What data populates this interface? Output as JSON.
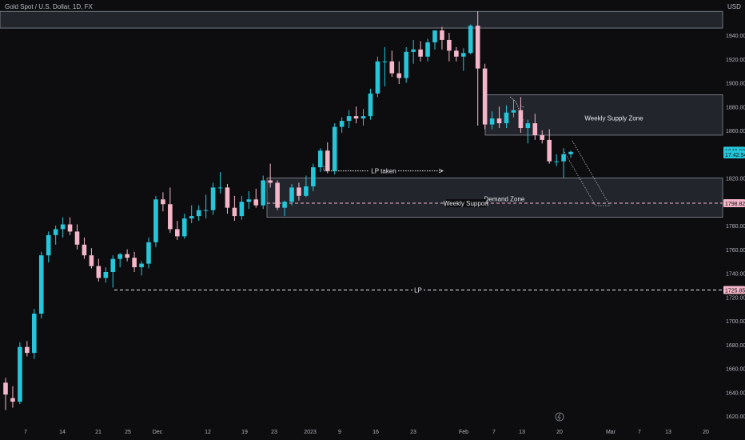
{
  "header": {
    "symbol_title": "Gold Spot / U.S. Dollar, 1D, FX",
    "currency": "USD"
  },
  "colors": {
    "background": "#0d0d0f",
    "up_candle": "#26c6da",
    "down_candle": "#f4b6c8",
    "zone_fill": "#363a45",
    "zone_border": "#8a8f99",
    "axis_text": "#b2b5be",
    "label_bg_pink": "#f4b6c8",
    "label_bg_cyan": "#26c6da"
  },
  "chart_data": {
    "type": "candlestick",
    "x_tick_labels": [
      "7",
      "14",
      "21",
      "25",
      "Dec",
      "12",
      "19",
      "23",
      "2023",
      "9",
      "16",
      "23",
      "Feb",
      "7",
      "13",
      "20",
      "Mar",
      "7",
      "13",
      "20"
    ],
    "y_ticks": [
      "1620.00",
      "1640.00",
      "1660.00",
      "1680.00",
      "1700.00",
      "1720.00",
      "1740.00",
      "1760.00",
      "1780.00",
      "1800.00",
      "1820.00",
      "1840.00",
      "1860.00",
      "1880.00",
      "1900.00",
      "1920.00",
      "1940.00"
    ],
    "ylim": [
      1614,
      1958
    ],
    "price_labels": [
      {
        "text": "1842.98",
        "value": 1842.98,
        "style": "cyan"
      },
      {
        "text": "17:42:54",
        "value": 1839.8,
        "style": "cyan"
      },
      {
        "text": "1798.82",
        "value": 1798.82,
        "style": "pink"
      },
      {
        "text": "1725.85",
        "value": 1725.85,
        "style": "pink"
      }
    ],
    "candles": [
      {
        "o": 1648,
        "h": 1652,
        "l": 1625,
        "c": 1638
      },
      {
        "o": 1635,
        "h": 1645,
        "l": 1627,
        "c": 1632
      },
      {
        "o": 1632,
        "h": 1682,
        "l": 1630,
        "c": 1678
      },
      {
        "o": 1678,
        "h": 1683,
        "l": 1670,
        "c": 1673
      },
      {
        "o": 1673,
        "h": 1710,
        "l": 1668,
        "c": 1706
      },
      {
        "o": 1706,
        "h": 1758,
        "l": 1702,
        "c": 1755
      },
      {
        "o": 1755,
        "h": 1775,
        "l": 1749,
        "c": 1772
      },
      {
        "o": 1772,
        "h": 1780,
        "l": 1764,
        "c": 1777
      },
      {
        "o": 1777,
        "h": 1787,
        "l": 1770,
        "c": 1781
      },
      {
        "o": 1781,
        "h": 1787,
        "l": 1772,
        "c": 1775
      },
      {
        "o": 1775,
        "h": 1781,
        "l": 1760,
        "c": 1764
      },
      {
        "o": 1764,
        "h": 1770,
        "l": 1752,
        "c": 1755
      },
      {
        "o": 1755,
        "h": 1761,
        "l": 1744,
        "c": 1746
      },
      {
        "o": 1746,
        "h": 1752,
        "l": 1733,
        "c": 1736
      },
      {
        "o": 1736,
        "h": 1745,
        "l": 1732,
        "c": 1741
      },
      {
        "o": 1741,
        "h": 1755,
        "l": 1728,
        "c": 1752
      },
      {
        "o": 1752,
        "h": 1757,
        "l": 1745,
        "c": 1756
      },
      {
        "o": 1756,
        "h": 1760,
        "l": 1750,
        "c": 1753
      },
      {
        "o": 1753,
        "h": 1758,
        "l": 1741,
        "c": 1745
      },
      {
        "o": 1745,
        "h": 1750,
        "l": 1738,
        "c": 1748
      },
      {
        "o": 1748,
        "h": 1770,
        "l": 1744,
        "c": 1766
      },
      {
        "o": 1766,
        "h": 1805,
        "l": 1762,
        "c": 1802
      },
      {
        "o": 1802,
        "h": 1808,
        "l": 1792,
        "c": 1798
      },
      {
        "o": 1798,
        "h": 1812,
        "l": 1774,
        "c": 1777
      },
      {
        "o": 1777,
        "h": 1784,
        "l": 1768,
        "c": 1771
      },
      {
        "o": 1771,
        "h": 1790,
        "l": 1769,
        "c": 1786
      },
      {
        "o": 1786,
        "h": 1797,
        "l": 1782,
        "c": 1788
      },
      {
        "o": 1788,
        "h": 1797,
        "l": 1784,
        "c": 1793
      },
      {
        "o": 1793,
        "h": 1806,
        "l": 1786,
        "c": 1793
      },
      {
        "o": 1793,
        "h": 1816,
        "l": 1789,
        "c": 1812
      },
      {
        "o": 1812,
        "h": 1825,
        "l": 1807,
        "c": 1812
      },
      {
        "o": 1812,
        "h": 1815,
        "l": 1790,
        "c": 1795
      },
      {
        "o": 1795,
        "h": 1805,
        "l": 1784,
        "c": 1788
      },
      {
        "o": 1788,
        "h": 1805,
        "l": 1785,
        "c": 1800
      },
      {
        "o": 1800,
        "h": 1809,
        "l": 1794,
        "c": 1802
      },
      {
        "o": 1802,
        "h": 1811,
        "l": 1795,
        "c": 1797
      },
      {
        "o": 1797,
        "h": 1822,
        "l": 1794,
        "c": 1818
      },
      {
        "o": 1818,
        "h": 1832,
        "l": 1812,
        "c": 1816
      },
      {
        "o": 1816,
        "h": 1818,
        "l": 1793,
        "c": 1795
      },
      {
        "o": 1795,
        "h": 1801,
        "l": 1788,
        "c": 1800
      },
      {
        "o": 1800,
        "h": 1815,
        "l": 1797,
        "c": 1812
      },
      {
        "o": 1812,
        "h": 1816,
        "l": 1801,
        "c": 1805
      },
      {
        "o": 1805,
        "h": 1822,
        "l": 1804,
        "c": 1813
      },
      {
        "o": 1813,
        "h": 1832,
        "l": 1809,
        "c": 1829
      },
      {
        "o": 1829,
        "h": 1845,
        "l": 1825,
        "c": 1843
      },
      {
        "o": 1843,
        "h": 1850,
        "l": 1824,
        "c": 1826
      },
      {
        "o": 1826,
        "h": 1866,
        "l": 1823,
        "c": 1863
      },
      {
        "o": 1863,
        "h": 1871,
        "l": 1858,
        "c": 1868
      },
      {
        "o": 1868,
        "h": 1877,
        "l": 1862,
        "c": 1872
      },
      {
        "o": 1872,
        "h": 1880,
        "l": 1866,
        "c": 1870
      },
      {
        "o": 1870,
        "h": 1878,
        "l": 1864,
        "c": 1872
      },
      {
        "o": 1872,
        "h": 1895,
        "l": 1869,
        "c": 1891
      },
      {
        "o": 1891,
        "h": 1922,
        "l": 1888,
        "c": 1918
      },
      {
        "o": 1918,
        "h": 1930,
        "l": 1897,
        "c": 1918
      },
      {
        "o": 1918,
        "h": 1927,
        "l": 1905,
        "c": 1908
      },
      {
        "o": 1908,
        "h": 1918,
        "l": 1899,
        "c": 1904
      },
      {
        "o": 1904,
        "h": 1930,
        "l": 1900,
        "c": 1926
      },
      {
        "o": 1926,
        "h": 1936,
        "l": 1916,
        "c": 1928
      },
      {
        "o": 1928,
        "h": 1935,
        "l": 1918,
        "c": 1922
      },
      {
        "o": 1922,
        "h": 1937,
        "l": 1918,
        "c": 1934
      },
      {
        "o": 1934,
        "h": 1944,
        "l": 1928,
        "c": 1944
      },
      {
        "o": 1944,
        "h": 1947,
        "l": 1928,
        "c": 1936
      },
      {
        "o": 1936,
        "h": 1942,
        "l": 1918,
        "c": 1927
      },
      {
        "o": 1927,
        "h": 1930,
        "l": 1918,
        "c": 1922
      },
      {
        "o": 1922,
        "h": 1929,
        "l": 1910,
        "c": 1925
      },
      {
        "o": 1925,
        "h": 1949,
        "l": 1924,
        "c": 1948
      },
      {
        "o": 1948,
        "h": 1960,
        "l": 1864,
        "c": 1912
      },
      {
        "o": 1912,
        "h": 1916,
        "l": 1861,
        "c": 1865
      },
      {
        "o": 1865,
        "h": 1876,
        "l": 1861,
        "c": 1870
      },
      {
        "o": 1870,
        "h": 1880,
        "l": 1862,
        "c": 1866
      },
      {
        "o": 1866,
        "h": 1881,
        "l": 1862,
        "c": 1875
      },
      {
        "o": 1875,
        "h": 1886,
        "l": 1871,
        "c": 1877
      },
      {
        "o": 1877,
        "h": 1888,
        "l": 1858,
        "c": 1862
      },
      {
        "o": 1862,
        "h": 1869,
        "l": 1849,
        "c": 1866
      },
      {
        "o": 1866,
        "h": 1874,
        "l": 1852,
        "c": 1856
      },
      {
        "o": 1856,
        "h": 1860,
        "l": 1849,
        "c": 1852
      },
      {
        "o": 1852,
        "h": 1861,
        "l": 1832,
        "c": 1834
      },
      {
        "o": 1834,
        "h": 1840,
        "l": 1830,
        "c": 1834
      },
      {
        "o": 1834,
        "h": 1845,
        "l": 1820,
        "c": 1840
      },
      {
        "o": 1840,
        "h": 1843,
        "l": 1837,
        "c": 1842
      }
    ],
    "annotations": [
      {
        "type": "zone",
        "label": "Weekly Supply Zone",
        "from": 1856,
        "to": 1890
      },
      {
        "type": "zone",
        "label": "Demand Zone",
        "from": 1787,
        "to": 1820
      },
      {
        "type": "zone",
        "label": "",
        "from": 1946,
        "to": 1960
      },
      {
        "type": "horizontal_line",
        "label": "Weekly Support",
        "value": 1798.82
      },
      {
        "type": "horizontal_line",
        "label": "LP",
        "value": 1725.85
      },
      {
        "type": "horizontal_line",
        "label": "LP taken",
        "value": 1826
      }
    ]
  }
}
